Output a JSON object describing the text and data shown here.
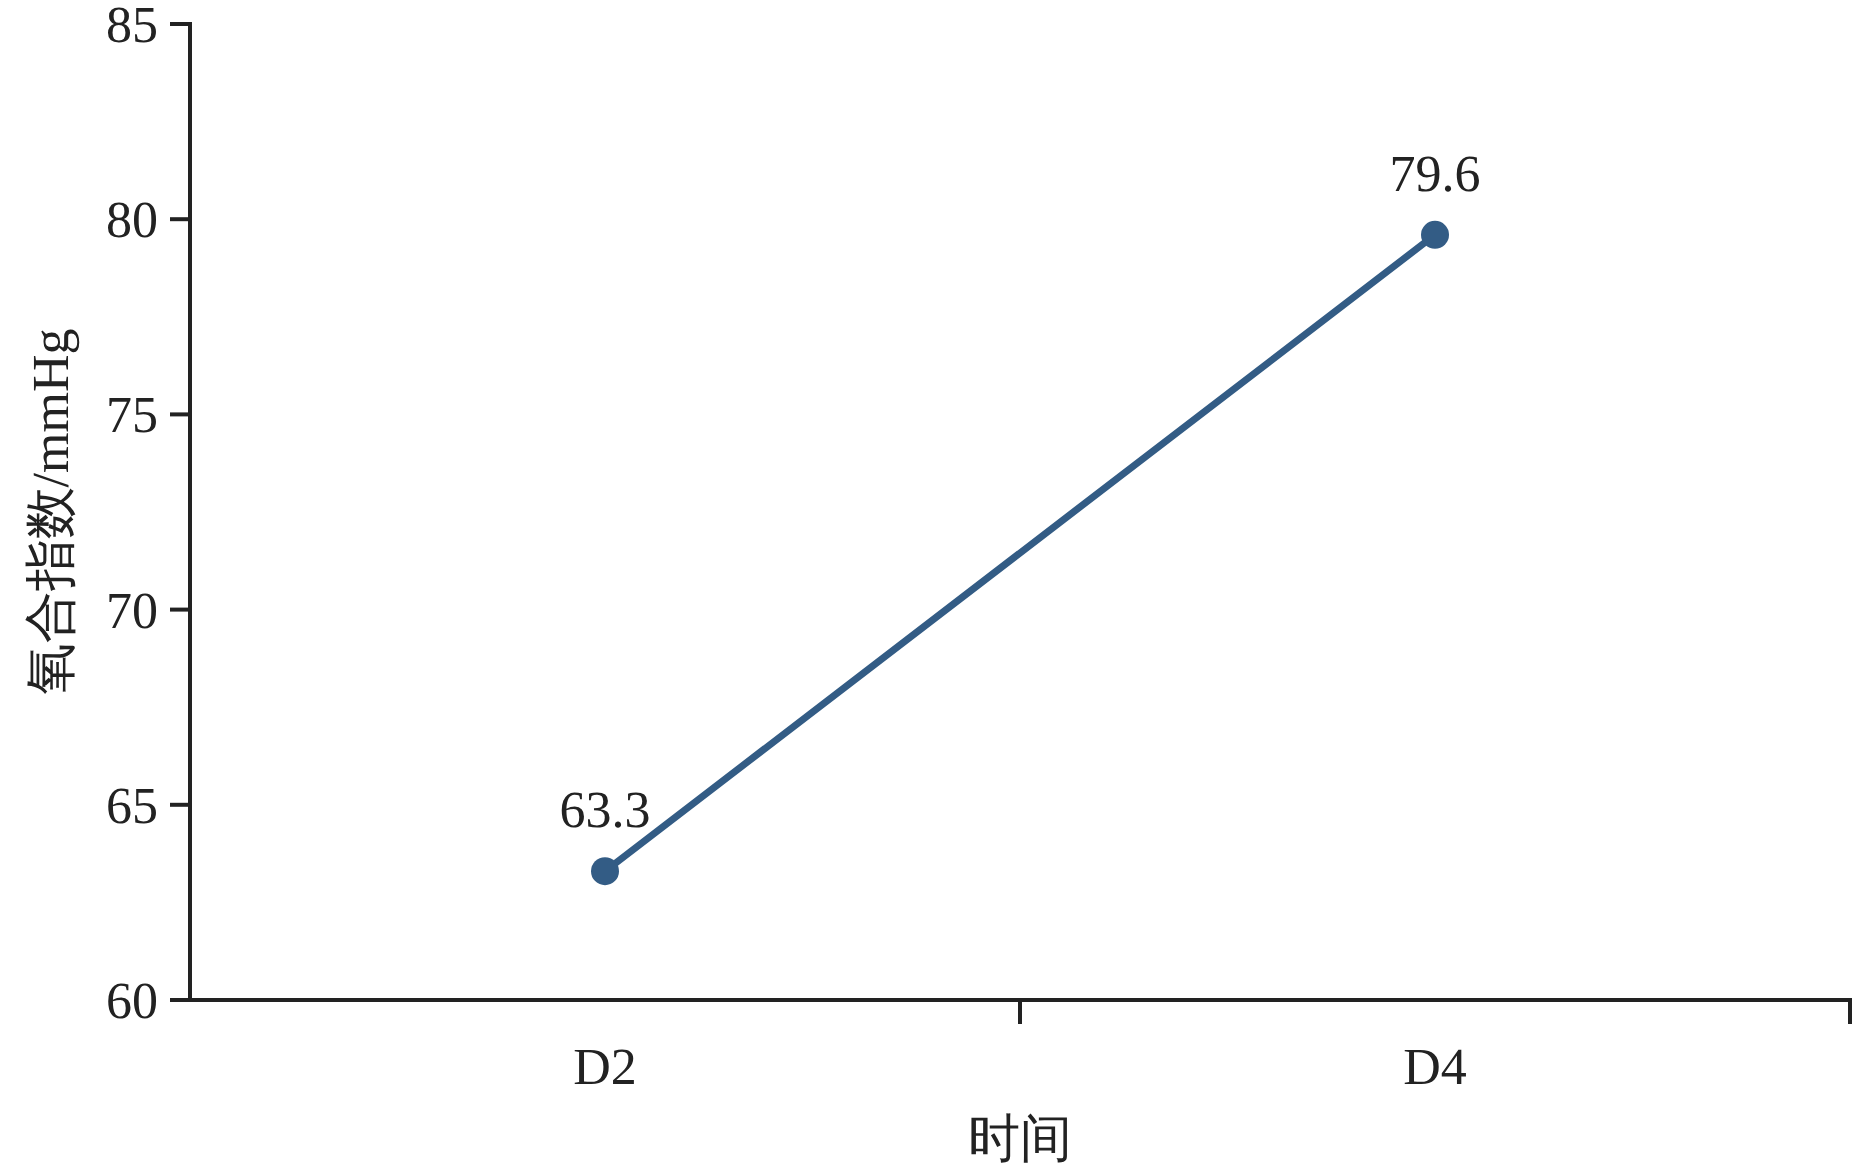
{
  "chart_data": {
    "type": "line",
    "xlabel": "时间",
    "ylabel": "氧合指数/mmHg",
    "categories": [
      "D2",
      "D4"
    ],
    "series": [
      {
        "color": "#335c85",
        "values": [
          63.3,
          79.6
        ]
      }
    ],
    "ylim": [
      60,
      85
    ],
    "yticks": [
      60,
      65,
      70,
      75,
      80,
      85
    ],
    "marker": "circle",
    "data_labels": true
  }
}
